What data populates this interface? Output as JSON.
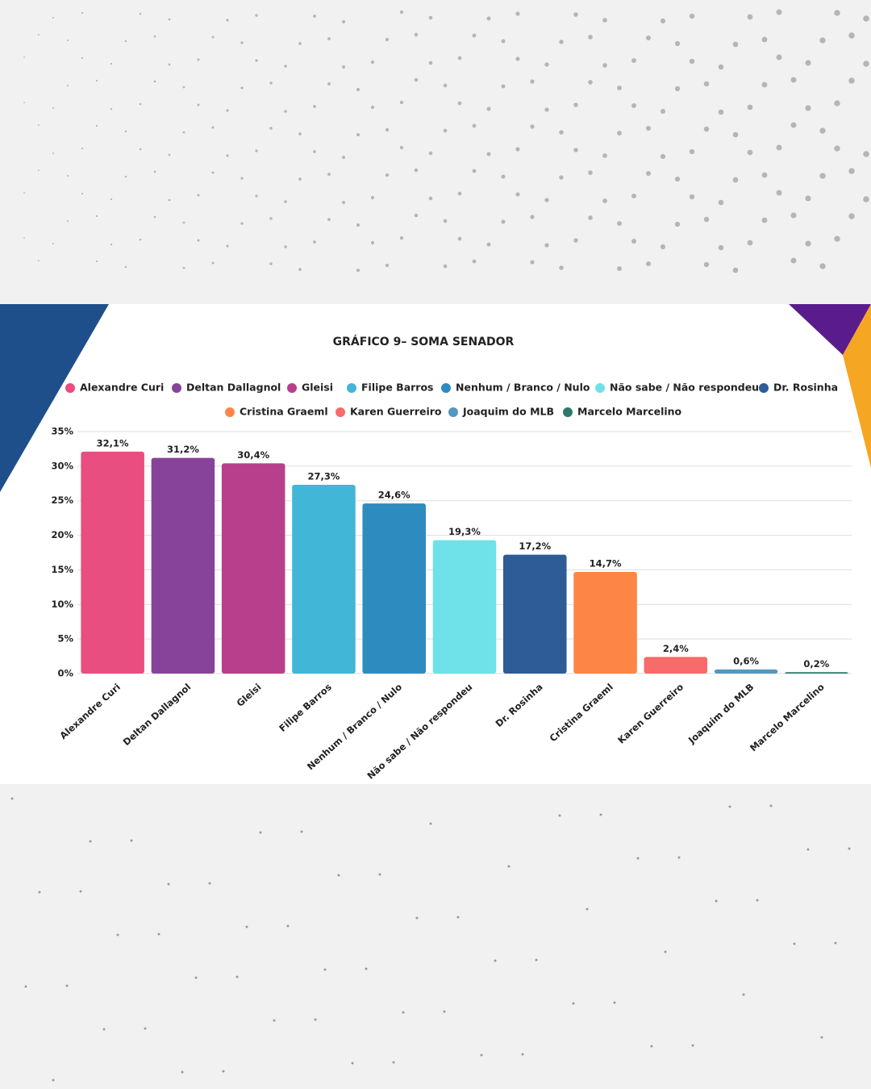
{
  "chart_data": {
    "type": "bar",
    "title": "GRÁFICO 9– SOMA SENADOR",
    "categories": [
      "Alexandre Curi",
      "Deltan Dallagnol",
      "Gleisi",
      "Filipe Barros",
      "Nenhum / Branco / Nulo",
      "Não sabe / Não respondeu",
      "Dr. Rosinha",
      "Cristina Graeml",
      "Karen Guerreiro",
      "Joaquim do MLB",
      "Marcelo Marcelino"
    ],
    "values": [
      32.1,
      31.2,
      30.4,
      27.3,
      24.6,
      19.3,
      17.2,
      14.7,
      2.4,
      0.6,
      0.2
    ],
    "value_labels": [
      "32,1%",
      "31,2%",
      "30,4%",
      "27,3%",
      "24,6%",
      "19,3%",
      "17,2%",
      "14,7%",
      "2,4%",
      "0,6%",
      "0,2%"
    ],
    "colors": [
      "#e94e80",
      "#874399",
      "#b83f8c",
      "#42b6d6",
      "#2e8bbf",
      "#6ee2e8",
      "#2d5c97",
      "#fd8646",
      "#f96a6a",
      "#5497c0",
      "#2e7a6a"
    ],
    "ylim": [
      0,
      35
    ],
    "yticks": [
      {
        "value": 0,
        "label": "0%"
      },
      {
        "value": 5,
        "label": "5%"
      },
      {
        "value": 10,
        "label": "10%"
      },
      {
        "value": 15,
        "label": "15%"
      },
      {
        "value": 20,
        "label": "20%"
      },
      {
        "value": 25,
        "label": "25%"
      },
      {
        "value": 30,
        "label": "30%"
      },
      {
        "value": 35,
        "label": "35%"
      }
    ],
    "grid": true
  }
}
